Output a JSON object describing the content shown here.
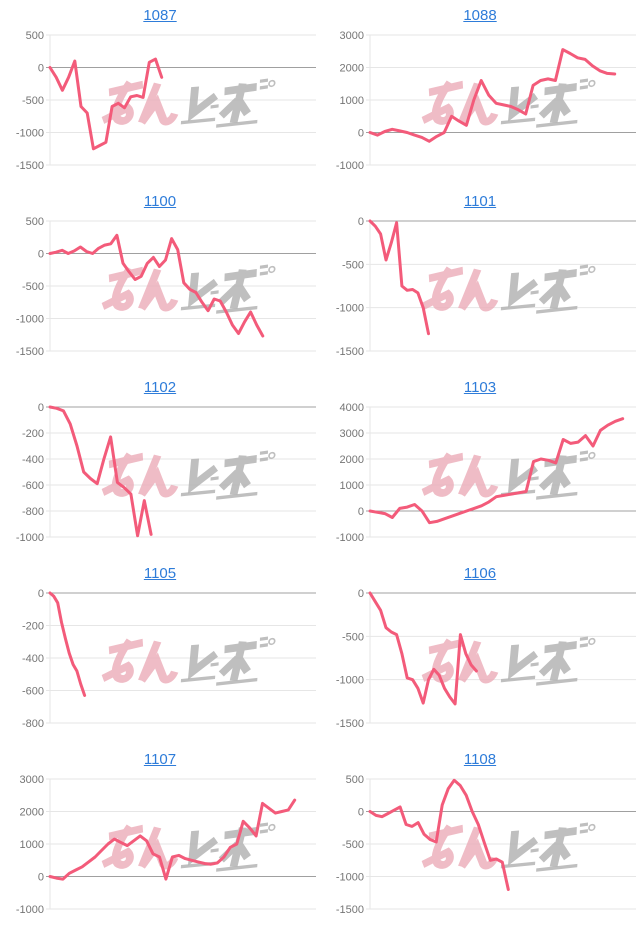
{
  "page": {
    "background": "#ffffff"
  },
  "watermark": {
    "text": "みんレポ",
    "pink_text": "みん",
    "gray_text": "レポ",
    "pink": "#ecacb8",
    "gray": "#b4b4b4"
  },
  "chart_style": {
    "line_color": "#f35b7a",
    "grid_color": "#e6e6e6",
    "baseline_color": "#a0a0a0",
    "label_color": "#757575",
    "title_color": "#2e7cd9",
    "grid": true,
    "legend": "none"
  },
  "chart_data": [
    {
      "type": "line",
      "title": "1087",
      "y_ticks": [
        500,
        0,
        -500,
        -1000,
        -1500
      ],
      "ylim": [
        -1500,
        500
      ],
      "x_span": 0.42,
      "values": [
        0,
        -150,
        -350,
        -150,
        100,
        -600,
        -700,
        -1250,
        -1200,
        -1150,
        -600,
        -550,
        -620,
        -450,
        -430,
        -460,
        80,
        130,
        -150
      ]
    },
    {
      "type": "line",
      "title": "1088",
      "y_ticks": [
        3000,
        2000,
        1000,
        0,
        -1000
      ],
      "ylim": [
        -1000,
        3000
      ],
      "x_span": 0.92,
      "values": [
        0,
        -80,
        30,
        100,
        50,
        0,
        -80,
        -150,
        -270,
        -120,
        0,
        500,
        350,
        220,
        1000,
        1600,
        1150,
        900,
        850,
        800,
        700,
        570,
        1450,
        1600,
        1650,
        1600,
        2550,
        2430,
        2300,
        2250,
        2050,
        1900,
        1820,
        1800
      ]
    },
    {
      "type": "line",
      "title": "1100",
      "y_ticks": [
        500,
        0,
        -500,
        -1000,
        -1500
      ],
      "ylim": [
        -1500,
        500
      ],
      "x_span": 0.8,
      "values": [
        0,
        20,
        50,
        0,
        40,
        100,
        30,
        0,
        80,
        130,
        150,
        280,
        -150,
        -280,
        -400,
        -350,
        -150,
        -60,
        -200,
        -100,
        230,
        60,
        -450,
        -550,
        -600,
        -750,
        -880,
        -700,
        -730,
        -900,
        -1100,
        -1230,
        -1050,
        -900,
        -1100,
        -1270
      ]
    },
    {
      "type": "line",
      "title": "1101",
      "y_ticks": [
        0,
        -500,
        -1000,
        -1500
      ],
      "ylim": [
        -1500,
        0
      ],
      "x_span": 0.22,
      "values": [
        0,
        -60,
        -150,
        -450,
        -250,
        -20,
        -750,
        -800,
        -790,
        -830,
        -1000,
        -1300
      ]
    },
    {
      "type": "line",
      "title": "1102",
      "y_ticks": [
        0,
        -200,
        -400,
        -600,
        -800,
        -1000
      ],
      "ylim": [
        -1000,
        0
      ],
      "x_span": 0.38,
      "values": [
        0,
        -10,
        -30,
        -130,
        -300,
        -500,
        -550,
        -590,
        -400,
        -230,
        -580,
        -620,
        -670,
        -990,
        -720,
        -980
      ]
    },
    {
      "type": "line",
      "title": "1103",
      "y_ticks": [
        4000,
        3000,
        2000,
        1000,
        0,
        -1000
      ],
      "ylim": [
        -1000,
        4000
      ],
      "x_span": 0.95,
      "values": [
        0,
        -50,
        -100,
        -250,
        100,
        150,
        250,
        0,
        -450,
        -400,
        -300,
        -200,
        -100,
        0,
        100,
        200,
        350,
        550,
        600,
        650,
        700,
        750,
        1900,
        2000,
        1950,
        1850,
        2750,
        2600,
        2650,
        2900,
        2500,
        3100,
        3300,
        3450,
        3550
      ]
    },
    {
      "type": "line",
      "title": "1105",
      "y_ticks": [
        0,
        -200,
        -400,
        -600,
        -800
      ],
      "ylim": [
        -800,
        0
      ],
      "x_span": 0.13,
      "values": [
        0,
        -20,
        -60,
        -180,
        -280,
        -370,
        -440,
        -480,
        -560,
        -630
      ]
    },
    {
      "type": "line",
      "title": "1106",
      "y_ticks": [
        0,
        -500,
        -1000,
        -1500
      ],
      "ylim": [
        -1500,
        0
      ],
      "x_span": 0.4,
      "values": [
        0,
        -100,
        -200,
        -400,
        -450,
        -480,
        -700,
        -980,
        -1000,
        -1100,
        -1270,
        -1000,
        -880,
        -950,
        -1100,
        -1200,
        -1280,
        -480,
        -700,
        -830,
        -900
      ]
    },
    {
      "type": "line",
      "title": "1107",
      "y_ticks": [
        3000,
        2000,
        1000,
        0,
        -1000
      ],
      "ylim": [
        -1000,
        3000
      ],
      "x_span": 0.92,
      "values": [
        0,
        -50,
        -80,
        100,
        200,
        300,
        450,
        600,
        800,
        1000,
        1150,
        1050,
        950,
        1100,
        1250,
        1100,
        700,
        600,
        -80,
        600,
        650,
        550,
        500,
        450,
        400,
        380,
        420,
        600,
        900,
        1000,
        1700,
        1500,
        1250,
        2250,
        2100,
        1950,
        2000,
        2050,
        2350
      ]
    },
    {
      "type": "line",
      "title": "1108",
      "y_ticks": [
        500,
        0,
        -500,
        -1000,
        -1500
      ],
      "ylim": [
        -1500,
        500
      ],
      "x_span": 0.52,
      "values": [
        0,
        -60,
        -80,
        -30,
        20,
        70,
        -200,
        -230,
        -170,
        -350,
        -430,
        -470,
        100,
        350,
        480,
        400,
        250,
        0,
        -200,
        -480,
        -750,
        -730,
        -780,
        -1200
      ]
    }
  ]
}
